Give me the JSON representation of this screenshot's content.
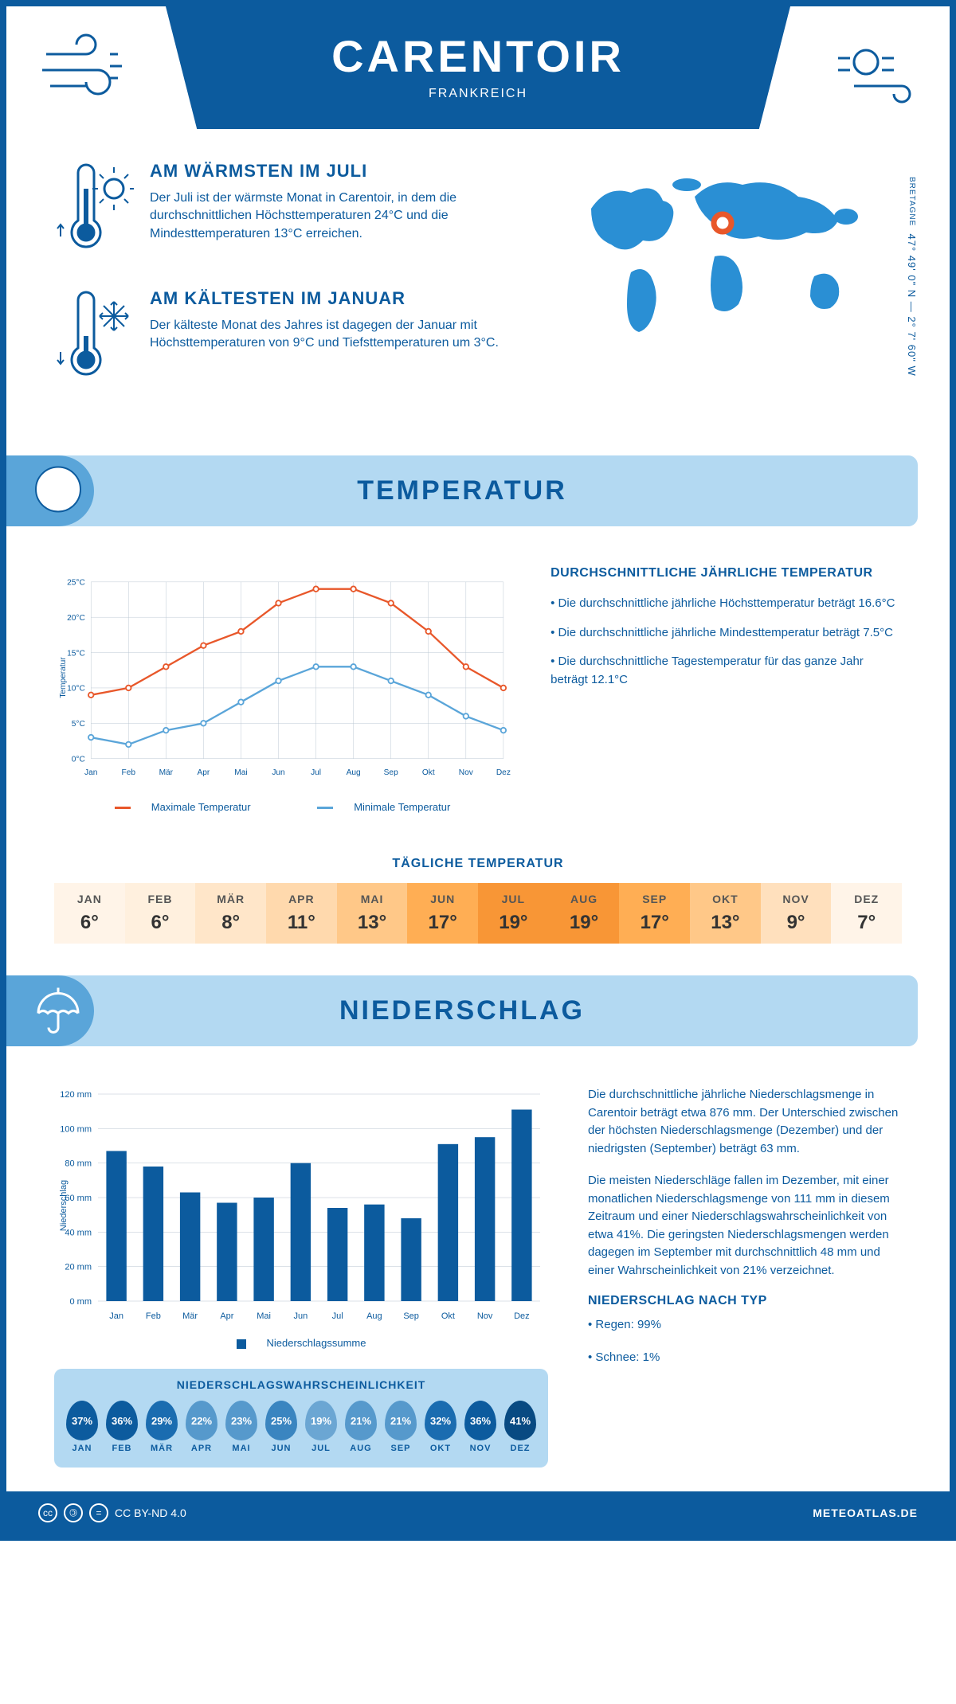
{
  "header": {
    "title": "CARENTOIR",
    "subtitle": "FRANKREICH"
  },
  "coords": {
    "lat": "47° 49' 0\" N — 2° 7' 60\" W",
    "region": "BRETAGNE"
  },
  "intro": {
    "warm": {
      "title": "AM WÄRMSTEN IM JULI",
      "text": "Der Juli ist der wärmste Monat in Carentoir, in dem die durchschnittlichen Höchsttemperaturen 24°C und die Mindesttemperaturen 13°C erreichen."
    },
    "cold": {
      "title": "AM KÄLTESTEN IM JANUAR",
      "text": "Der kälteste Monat des Jahres ist dagegen der Januar mit Höchsttemperaturen von 9°C und Tiefsttemperaturen um 3°C."
    }
  },
  "temp_section": {
    "banner": "TEMPERATUR",
    "chart": {
      "months": [
        "Jan",
        "Feb",
        "Mär",
        "Apr",
        "Mai",
        "Jun",
        "Jul",
        "Aug",
        "Sep",
        "Okt",
        "Nov",
        "Dez"
      ],
      "max_series": [
        9,
        10,
        13,
        16,
        18,
        22,
        24,
        24,
        22,
        18,
        13,
        10
      ],
      "min_series": [
        3,
        2,
        4,
        5,
        8,
        11,
        13,
        13,
        11,
        9,
        6,
        4
      ],
      "max_color": "#e8572a",
      "min_color": "#5aa5d9",
      "ylim": [
        0,
        25
      ],
      "ytick_step": 5,
      "ylabel": "Temperatur",
      "grid_color": "#b8c5d0",
      "legend_max": "Maximale Temperatur",
      "legend_min": "Minimale Temperatur"
    },
    "info": {
      "title": "DURCHSCHNITTLICHE JÄHRLICHE TEMPERATUR",
      "bullet1": "• Die durchschnittliche jährliche Höchsttemperatur beträgt 16.6°C",
      "bullet2": "• Die durchschnittliche jährliche Mindesttemperatur beträgt 7.5°C",
      "bullet3": "• Die durchschnittliche Tagestemperatur für das ganze Jahr beträgt 12.1°C"
    },
    "daily": {
      "title": "TÄGLICHE TEMPERATUR",
      "months": [
        "JAN",
        "FEB",
        "MÄR",
        "APR",
        "MAI",
        "JUN",
        "JUL",
        "AUG",
        "SEP",
        "OKT",
        "NOV",
        "DEZ"
      ],
      "values": [
        "6°",
        "6°",
        "8°",
        "11°",
        "13°",
        "17°",
        "19°",
        "19°",
        "17°",
        "13°",
        "9°",
        "7°"
      ],
      "colors": [
        "#fff4e8",
        "#fff0de",
        "#ffe6c9",
        "#ffd9ad",
        "#ffc888",
        "#ffae54",
        "#f89636",
        "#f89636",
        "#ffae54",
        "#ffc888",
        "#ffe0bd",
        "#fff4e8"
      ]
    }
  },
  "precip_section": {
    "banner": "NIEDERSCHLAG",
    "chart": {
      "months": [
        "Jan",
        "Feb",
        "Mär",
        "Apr",
        "Mai",
        "Jun",
        "Jul",
        "Aug",
        "Sep",
        "Okt",
        "Nov",
        "Dez"
      ],
      "values": [
        87,
        78,
        63,
        57,
        60,
        80,
        54,
        56,
        48,
        91,
        95,
        111
      ],
      "bar_color": "#0c5b9e",
      "ylim": [
        0,
        120
      ],
      "ytick_step": 20,
      "ylabel": "Niederschlag",
      "grid_color": "#b8c5d0",
      "legend": "Niederschlagssumme"
    },
    "text": {
      "p1": "Die durchschnittliche jährliche Niederschlagsmenge in Carentoir beträgt etwa 876 mm. Der Unterschied zwischen der höchsten Niederschlagsmenge (Dezember) und der niedrigsten (September) beträgt 63 mm.",
      "p2": "Die meisten Niederschläge fallen im Dezember, mit einer monatlichen Niederschlagsmenge von 111 mm in diesem Zeitraum und einer Niederschlagswahrscheinlichkeit von etwa 41%. Die geringsten Niederschlagsmengen werden dagegen im September mit durchschnittlich 48 mm und einer Wahrscheinlichkeit von 21% verzeichnet.",
      "type_title": "NIEDERSCHLAG NACH TYP",
      "type1": "• Regen: 99%",
      "type2": "• Schnee: 1%"
    },
    "prob": {
      "title": "NIEDERSCHLAGSWAHRSCHEINLICHKEIT",
      "months": [
        "JAN",
        "FEB",
        "MÄR",
        "APR",
        "MAI",
        "JUN",
        "JUL",
        "AUG",
        "SEP",
        "OKT",
        "NOV",
        "DEZ"
      ],
      "values": [
        "37%",
        "36%",
        "29%",
        "22%",
        "23%",
        "25%",
        "19%",
        "21%",
        "21%",
        "32%",
        "36%",
        "41%"
      ],
      "colors": [
        "#0c5b9e",
        "#0c5b9e",
        "#1a6cb0",
        "#5699cc",
        "#5699cc",
        "#3a85c0",
        "#6ba6d3",
        "#5699cc",
        "#5699cc",
        "#1a6cb0",
        "#0c5b9e",
        "#084a82"
      ]
    }
  },
  "footer": {
    "license": "CC BY-ND 4.0",
    "site": "METEOATLAS.DE"
  }
}
